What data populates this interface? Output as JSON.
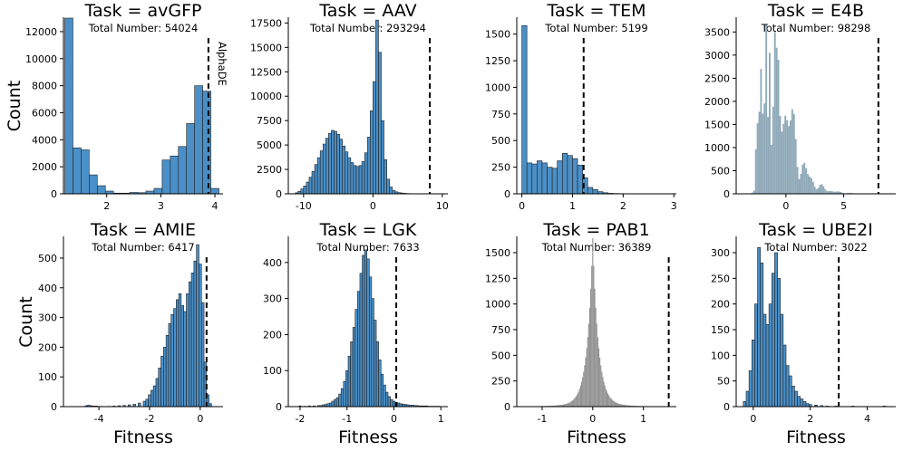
{
  "figure": {
    "panels_count": 8
  },
  "chart_data": [
    {
      "type": "bar",
      "title": "Task = avGFP",
      "subtitle": "Total Number: 54024",
      "xlabel": "",
      "ylabel": "Count",
      "xlim": [
        1.2,
        4.15
      ],
      "ylim": [
        0,
        13000
      ],
      "xticks": [
        2,
        3,
        4
      ],
      "yticks": [
        0,
        2000,
        4000,
        6000,
        8000,
        10000,
        12000
      ],
      "ref_line": 3.88,
      "annotation": "AlphaDE",
      "color": "#4a8fc7",
      "bin_width": 0.15,
      "bins": [
        [
          1.3,
          13100
        ],
        [
          1.45,
          3400
        ],
        [
          1.6,
          3250
        ],
        [
          1.75,
          1400
        ],
        [
          1.9,
          600
        ],
        [
          2.05,
          200
        ],
        [
          2.2,
          50
        ],
        [
          2.35,
          50
        ],
        [
          2.5,
          100
        ],
        [
          2.65,
          80
        ],
        [
          2.8,
          200
        ],
        [
          2.95,
          400
        ],
        [
          3.1,
          2500
        ],
        [
          3.25,
          2800
        ],
        [
          3.4,
          3500
        ],
        [
          3.55,
          5200
        ],
        [
          3.7,
          8000
        ],
        [
          3.85,
          7600
        ],
        [
          4.0,
          400
        ]
      ]
    },
    {
      "type": "bar",
      "title": "Task = AAV",
      "subtitle": "Total Number: 293294",
      "xlabel": "",
      "ylabel": "",
      "xlim": [
        -12.2,
        10.8
      ],
      "ylim": [
        0,
        18000
      ],
      "xticks": [
        -10,
        0,
        10
      ],
      "yticks": [
        0,
        2500,
        5000,
        7500,
        10000,
        12500,
        15000,
        17500
      ],
      "ref_line": 8.2,
      "color": "#4a8fc7",
      "bin_width": 0.4,
      "bins": [
        [
          -11.0,
          100
        ],
        [
          -10.6,
          250
        ],
        [
          -10.2,
          500
        ],
        [
          -9.8,
          800
        ],
        [
          -9.4,
          1200
        ],
        [
          -9.0,
          1700
        ],
        [
          -8.6,
          2300
        ],
        [
          -8.2,
          3000
        ],
        [
          -7.8,
          3700
        ],
        [
          -7.4,
          4400
        ],
        [
          -7.0,
          5100
        ],
        [
          -6.6,
          5700
        ],
        [
          -6.2,
          6200
        ],
        [
          -5.8,
          6500
        ],
        [
          -5.4,
          6400
        ],
        [
          -5.0,
          6100
        ],
        [
          -4.6,
          5600
        ],
        [
          -4.2,
          4900
        ],
        [
          -3.8,
          4300
        ],
        [
          -3.4,
          3700
        ],
        [
          -3.0,
          3200
        ],
        [
          -2.6,
          2900
        ],
        [
          -2.2,
          2800
        ],
        [
          -1.8,
          2900
        ],
        [
          -1.4,
          3300
        ],
        [
          -1.0,
          4200
        ],
        [
          -0.6,
          5800
        ],
        [
          -0.2,
          8500
        ],
        [
          0.2,
          11500
        ],
        [
          0.6,
          17800
        ],
        [
          1.0,
          14500
        ],
        [
          1.4,
          7500
        ],
        [
          1.8,
          3500
        ],
        [
          2.2,
          1500
        ],
        [
          2.6,
          700
        ],
        [
          3.0,
          350
        ],
        [
          3.4,
          200
        ],
        [
          3.8,
          120
        ],
        [
          4.2,
          80
        ],
        [
          4.6,
          50
        ],
        [
          5.0,
          30
        ],
        [
          5.4,
          20
        ],
        [
          5.8,
          10
        ]
      ]
    },
    {
      "type": "bar",
      "title": "Task = TEM",
      "subtitle": "Total Number: 5199",
      "xlabel": "",
      "ylabel": "",
      "xlim": [
        -0.1,
        3.05
      ],
      "ylim": [
        0,
        1650
      ],
      "xticks": [
        0,
        1,
        2,
        3
      ],
      "yticks": [
        0,
        250,
        500,
        750,
        1000,
        1250,
        1500
      ],
      "ref_line": 1.22,
      "color": "#4a8fc7",
      "bin_width": 0.1,
      "bins": [
        [
          0.05,
          1580
        ],
        [
          0.15,
          290
        ],
        [
          0.25,
          280
        ],
        [
          0.35,
          310
        ],
        [
          0.45,
          290
        ],
        [
          0.55,
          250
        ],
        [
          0.65,
          240
        ],
        [
          0.75,
          310
        ],
        [
          0.85,
          380
        ],
        [
          0.95,
          360
        ],
        [
          1.05,
          330
        ],
        [
          1.15,
          270
        ],
        [
          1.25,
          150
        ],
        [
          1.35,
          60
        ],
        [
          1.45,
          40
        ],
        [
          1.55,
          20
        ],
        [
          1.65,
          10
        ],
        [
          1.75,
          5
        ],
        [
          1.85,
          3
        ],
        [
          1.95,
          2
        ],
        [
          2.05,
          1
        ],
        [
          2.5,
          1
        ],
        [
          2.9,
          1
        ]
      ]
    },
    {
      "type": "bar",
      "title": "Task = E4B",
      "subtitle": "Total Number: 98298",
      "xlabel": "",
      "ylabel": "",
      "xlim": [
        -4.3,
        9.5
      ],
      "ylim": [
        0,
        3800
      ],
      "xticks": [
        0,
        5
      ],
      "yticks": [
        0,
        500,
        1000,
        1500,
        2000,
        2500,
        3000,
        3500
      ],
      "ref_line": 8.0,
      "color": "#8aa5b5",
      "bin_width": 0.15,
      "dense": true,
      "bins": []
    },
    {
      "type": "bar",
      "title": "Task = AMIE",
      "subtitle": "Total Number: 6417",
      "xlabel": "Fitness",
      "ylabel": "Count",
      "xlim": [
        -5.4,
        0.9
      ],
      "ylim": [
        0,
        570
      ],
      "xticks": [
        -4,
        -2,
        0
      ],
      "yticks": [
        0,
        100,
        200,
        300,
        400,
        500
      ],
      "ref_line": 0.25,
      "color": "#4a8fc7",
      "bin_width": 0.1,
      "bins": [
        [
          -4.5,
          3
        ],
        [
          -4.4,
          5
        ],
        [
          -4.3,
          3
        ],
        [
          -4.2,
          2
        ],
        [
          -4.1,
          2
        ],
        [
          -3.9,
          1
        ],
        [
          -3.6,
          1
        ],
        [
          -3.4,
          2
        ],
        [
          -3.2,
          3
        ],
        [
          -3.0,
          4
        ],
        [
          -2.8,
          6
        ],
        [
          -2.6,
          8
        ],
        [
          -2.4,
          12
        ],
        [
          -2.2,
          18
        ],
        [
          -2.1,
          25
        ],
        [
          -2.0,
          40
        ],
        [
          -1.9,
          55
        ],
        [
          -1.8,
          70
        ],
        [
          -1.7,
          95
        ],
        [
          -1.6,
          130
        ],
        [
          -1.5,
          170
        ],
        [
          -1.4,
          200
        ],
        [
          -1.3,
          240
        ],
        [
          -1.2,
          280
        ],
        [
          -1.1,
          310
        ],
        [
          -1.0,
          330
        ],
        [
          -0.9,
          360
        ],
        [
          -0.8,
          380
        ],
        [
          -0.7,
          340
        ],
        [
          -0.6,
          320
        ],
        [
          -0.5,
          380
        ],
        [
          -0.4,
          420
        ],
        [
          -0.3,
          450
        ],
        [
          -0.2,
          490
        ],
        [
          -0.1,
          545
        ],
        [
          0.0,
          480
        ],
        [
          0.1,
          350
        ],
        [
          0.2,
          150
        ],
        [
          0.3,
          40
        ],
        [
          0.4,
          10
        ]
      ]
    },
    {
      "type": "bar",
      "title": "Task = LGK",
      "subtitle": "Total Number: 7633",
      "xlabel": "Fitness",
      "ylabel": "",
      "xlim": [
        -2.25,
        1.15
      ],
      "ylim": [
        0,
        470
      ],
      "xticks": [
        -2,
        -1,
        0,
        1
      ],
      "yticks": [
        0,
        100,
        200,
        300,
        400
      ],
      "ref_line": 0.05,
      "color": "#4a8fc7",
      "bin_width": 0.05,
      "bins": [
        [
          -2.0,
          2
        ],
        [
          -1.9,
          1
        ],
        [
          -1.8,
          2
        ],
        [
          -1.7,
          2
        ],
        [
          -1.6,
          3
        ],
        [
          -1.55,
          3
        ],
        [
          -1.5,
          5
        ],
        [
          -1.45,
          6
        ],
        [
          -1.4,
          8
        ],
        [
          -1.35,
          10
        ],
        [
          -1.3,
          15
        ],
        [
          -1.25,
          20
        ],
        [
          -1.2,
          25
        ],
        [
          -1.15,
          35
        ],
        [
          -1.1,
          50
        ],
        [
          -1.05,
          70
        ],
        [
          -1.0,
          100
        ],
        [
          -0.95,
          140
        ],
        [
          -0.9,
          180
        ],
        [
          -0.85,
          220
        ],
        [
          -0.8,
          270
        ],
        [
          -0.75,
          320
        ],
        [
          -0.7,
          370
        ],
        [
          -0.65,
          420
        ],
        [
          -0.6,
          435
        ],
        [
          -0.55,
          410
        ],
        [
          -0.5,
          360
        ],
        [
          -0.45,
          300
        ],
        [
          -0.4,
          240
        ],
        [
          -0.35,
          180
        ],
        [
          -0.3,
          130
        ],
        [
          -0.25,
          90
        ],
        [
          -0.2,
          60
        ],
        [
          -0.15,
          40
        ],
        [
          -0.1,
          28
        ],
        [
          -0.05,
          20
        ],
        [
          0.0,
          15
        ],
        [
          0.05,
          12
        ],
        [
          0.1,
          10
        ],
        [
          0.15,
          8
        ],
        [
          0.2,
          7
        ],
        [
          0.25,
          6
        ],
        [
          0.3,
          5
        ],
        [
          0.35,
          4
        ],
        [
          0.4,
          4
        ],
        [
          0.45,
          3
        ],
        [
          0.5,
          3
        ],
        [
          0.55,
          2
        ],
        [
          0.6,
          2
        ],
        [
          0.65,
          2
        ],
        [
          0.7,
          2
        ],
        [
          0.75,
          1
        ],
        [
          0.8,
          1
        ],
        [
          0.85,
          1
        ],
        [
          0.9,
          1
        ],
        [
          0.95,
          1
        ]
      ]
    },
    {
      "type": "bar",
      "title": "Task = PAB1",
      "subtitle": "Total Number: 36389",
      "xlabel": "Fitness",
      "ylabel": "",
      "xlim": [
        -1.5,
        1.65
      ],
      "ylim": [
        0,
        1650
      ],
      "xticks": [
        -1,
        0,
        1
      ],
      "yticks": [
        0,
        250,
        500,
        750,
        1000,
        1250,
        1500
      ],
      "ref_line": 1.5,
      "color": "#8c8c8c",
      "bin_width": 0.02,
      "dense": true,
      "bins": []
    },
    {
      "type": "bar",
      "title": "Task = UBE2I",
      "subtitle": "Total Number: 3022",
      "xlabel": "Fitness",
      "ylabel": "",
      "xlim": [
        -0.6,
        5.0
      ],
      "ylim": [
        0,
        330
      ],
      "xticks": [
        0,
        2,
        4
      ],
      "yticks": [
        0,
        50,
        100,
        150,
        200,
        250,
        300
      ],
      "ref_line": 3.0,
      "color": "#4a8fc7",
      "bin_width": 0.1,
      "bins": [
        [
          -0.3,
          10
        ],
        [
          -0.2,
          30
        ],
        [
          -0.1,
          70
        ],
        [
          0.0,
          130
        ],
        [
          0.1,
          200
        ],
        [
          0.2,
          310
        ],
        [
          0.3,
          280
        ],
        [
          0.4,
          180
        ],
        [
          0.5,
          160
        ],
        [
          0.6,
          200
        ],
        [
          0.7,
          260
        ],
        [
          0.8,
          300
        ],
        [
          0.9,
          250
        ],
        [
          1.0,
          180
        ],
        [
          1.1,
          120
        ],
        [
          1.2,
          80
        ],
        [
          1.3,
          60
        ],
        [
          1.4,
          40
        ],
        [
          1.5,
          30
        ],
        [
          1.6,
          20
        ],
        [
          1.7,
          15
        ],
        [
          1.8,
          10
        ],
        [
          1.9,
          6
        ],
        [
          2.0,
          4
        ],
        [
          2.2,
          3
        ],
        [
          2.4,
          2
        ],
        [
          2.6,
          1
        ],
        [
          2.9,
          1
        ],
        [
          3.5,
          1
        ],
        [
          4.6,
          1
        ]
      ]
    }
  ]
}
